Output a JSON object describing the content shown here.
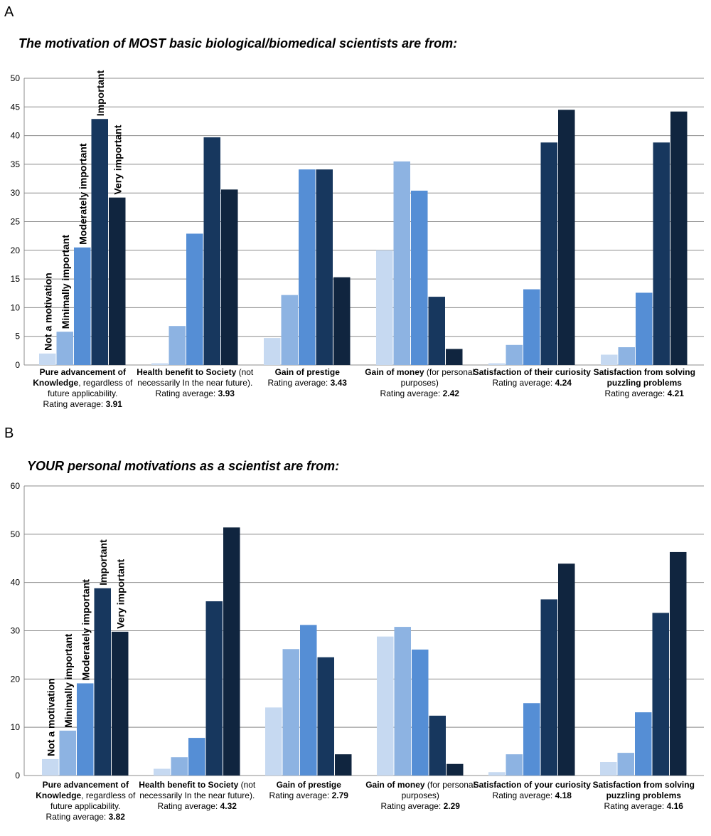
{
  "colors": [
    "#c6d9f1",
    "#8db3e2",
    "#558ed5",
    "#17375e",
    "#10253f"
  ],
  "legend_labels": [
    "Not a motivation",
    "Minimally important",
    "Moderately important",
    "Important",
    "Very important"
  ],
  "chart_data": [
    {
      "panel": "A",
      "type": "bar",
      "title": "The motivation of MOST basic biological/biomedical scientists are from:",
      "ylim": [
        0,
        50
      ],
      "yticks": [
        0,
        5,
        10,
        15,
        20,
        25,
        30,
        35,
        40,
        45,
        50
      ],
      "grid": true,
      "categories": [
        {
          "bold": "Pure advancement of Knowledge",
          "rest": ", regardless of future applicability.",
          "rating_label": "Rating average: ",
          "rating": "3.91"
        },
        {
          "bold": "Health benefit to Society",
          "rest": " (not necessarily In the near future).",
          "rating_label": "Rating average: ",
          "rating": "3.93"
        },
        {
          "bold": "Gain of prestige",
          "rest": "",
          "rating_label": "Rating average: ",
          "rating": "3.43"
        },
        {
          "bold": "Gain of money",
          "rest": "(for personal purposes)",
          "rating_label": "Rating average: ",
          "rating": "2.42"
        },
        {
          "bold": "Satisfaction of their curiosity",
          "rest": "",
          "rating_label": "Rating average: ",
          "rating": "4.24"
        },
        {
          "bold": "Satisfaction from solving puzzling problems",
          "rest": "",
          "rating_label": "Rating average: ",
          "rating": "4.21"
        }
      ],
      "series": [
        {
          "name": "Not a motivation",
          "values": [
            2.0,
            0.3,
            4.7,
            20.0,
            0.3,
            1.8
          ]
        },
        {
          "name": "Minimally important",
          "values": [
            5.8,
            6.8,
            12.2,
            35.5,
            3.5,
            3.1
          ]
        },
        {
          "name": "Moderately important",
          "values": [
            20.5,
            22.9,
            34.1,
            30.4,
            13.2,
            12.6
          ]
        },
        {
          "name": "Important",
          "values": [
            42.9,
            39.7,
            34.1,
            11.9,
            38.8,
            38.8
          ]
        },
        {
          "name": "Very important",
          "values": [
            29.2,
            30.6,
            15.3,
            2.8,
            44.5,
            44.2
          ]
        }
      ]
    },
    {
      "panel": "B",
      "type": "bar",
      "title": "YOUR personal motivations as a scientist are from:",
      "ylim": [
        0,
        60
      ],
      "yticks": [
        0,
        10,
        20,
        30,
        40,
        50,
        60
      ],
      "grid": true,
      "categories": [
        {
          "bold": "Pure advancement of Knowledge",
          "rest": ", regardless of future applicability.",
          "rating_label": "Rating average: ",
          "rating": "3.82"
        },
        {
          "bold": "Health benefit to Society",
          "rest": " (not necessarily In the near future).",
          "rating_label": "Rating average: ",
          "rating": "4.32"
        },
        {
          "bold": "Gain of prestige",
          "rest": "",
          "rating_label": "Rating average: ",
          "rating": "2.79"
        },
        {
          "bold": "Gain of money",
          "rest": "(for personal purposes)",
          "rating_label": "Rating average: ",
          "rating": "2.29"
        },
        {
          "bold": "Satisfaction of your curiosity",
          "rest": "",
          "rating_label": "Rating average: ",
          "rating": "4.18"
        },
        {
          "bold": "Satisfaction from solving puzzling problems",
          "rest": "",
          "rating_label": "Rating average: ",
          "rating": "4.16"
        }
      ],
      "series": [
        {
          "name": "Not a motivation",
          "values": [
            3.4,
            1.4,
            14.1,
            28.8,
            0.7,
            2.8
          ]
        },
        {
          "name": "Minimally important",
          "values": [
            9.3,
            3.8,
            26.2,
            30.8,
            4.4,
            4.7
          ]
        },
        {
          "name": "Moderately important",
          "values": [
            19.1,
            7.8,
            31.2,
            26.1,
            15.0,
            13.1
          ]
        },
        {
          "name": "Important",
          "values": [
            38.8,
            36.1,
            24.5,
            12.4,
            36.5,
            33.7
          ]
        },
        {
          "name": "Very important",
          "values": [
            29.8,
            51.4,
            4.4,
            2.4,
            43.9,
            46.3
          ]
        }
      ]
    }
  ]
}
